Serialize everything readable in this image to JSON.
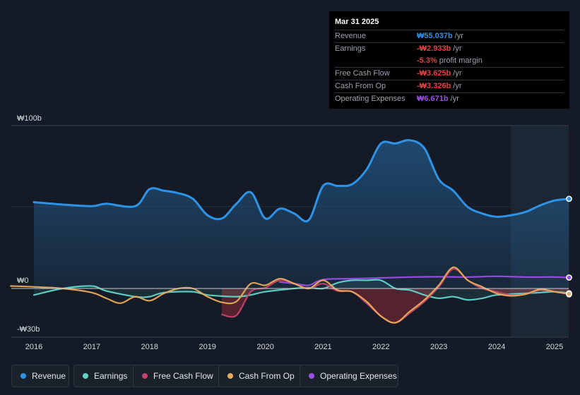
{
  "colors": {
    "revenue": "#2e93e6",
    "earnings": "#5fd4c9",
    "free_cash_flow": "#c2426d",
    "cash_from_op": "#e9aa5a",
    "operating_expenses": "#9b4fe6",
    "negative": "#e04141"
  },
  "tooltip": {
    "date": "Mar 31 2025",
    "rows": [
      {
        "label": "Revenue",
        "value": "₩55.037b",
        "unit": "/yr"
      },
      {
        "label": "Earnings",
        "value": "-₩2.933b",
        "unit": "/yr"
      },
      {
        "label": "",
        "value": "-5.3%",
        "unit": "profit margin"
      },
      {
        "label": "Free Cash Flow",
        "value": "-₩3.625b",
        "unit": "/yr"
      },
      {
        "label": "Cash From Op",
        "value": "-₩3.326b",
        "unit": "/yr"
      },
      {
        "label": "Operating Expenses",
        "value": "₩6.671b",
        "unit": "/yr"
      }
    ]
  },
  "legend": [
    "Revenue",
    "Earnings",
    "Free Cash Flow",
    "Cash From Op",
    "Operating Expenses"
  ],
  "chart_data": {
    "type": "area",
    "currency_unit": "billion KRW",
    "ylim": [
      -30,
      100
    ],
    "y_tick_labels": [
      "₩100b",
      "₩0",
      "-₩30b"
    ],
    "x_tick_labels": [
      "2016",
      "2017",
      "2018",
      "2019",
      "2020",
      "2021",
      "2022",
      "2023",
      "2024",
      "2025"
    ],
    "x_range": [
      2015.6,
      2025.3
    ],
    "forecast_region_start": 2024.25,
    "series": [
      {
        "name": "Revenue",
        "points": [
          [
            2016.0,
            53
          ],
          [
            2016.5,
            51.5
          ],
          [
            2017.0,
            50.5
          ],
          [
            2017.25,
            52
          ],
          [
            2017.75,
            50.5
          ],
          [
            2018.0,
            61
          ],
          [
            2018.25,
            60
          ],
          [
            2018.5,
            58.5
          ],
          [
            2018.75,
            55
          ],
          [
            2019.0,
            45
          ],
          [
            2019.25,
            43
          ],
          [
            2019.5,
            52
          ],
          [
            2019.75,
            59
          ],
          [
            2020.0,
            43
          ],
          [
            2020.25,
            49
          ],
          [
            2020.5,
            46
          ],
          [
            2020.75,
            42
          ],
          [
            2021.0,
            63
          ],
          [
            2021.25,
            63
          ],
          [
            2021.5,
            64
          ],
          [
            2021.75,
            73
          ],
          [
            2022.0,
            89
          ],
          [
            2022.25,
            89
          ],
          [
            2022.5,
            91
          ],
          [
            2022.75,
            86
          ],
          [
            2023.0,
            67
          ],
          [
            2023.25,
            60
          ],
          [
            2023.5,
            50
          ],
          [
            2023.75,
            46
          ],
          [
            2024.0,
            44
          ],
          [
            2024.25,
            45
          ],
          [
            2024.5,
            47
          ],
          [
            2024.75,
            51
          ],
          [
            2025.0,
            54
          ],
          [
            2025.25,
            55
          ]
        ]
      },
      {
        "name": "Earnings",
        "points": [
          [
            2016.0,
            -4
          ],
          [
            2016.5,
            0
          ],
          [
            2017.0,
            1.5
          ],
          [
            2017.25,
            -1.5
          ],
          [
            2017.75,
            -5
          ],
          [
            2018.0,
            -5
          ],
          [
            2018.25,
            -2.5
          ],
          [
            2018.75,
            -2
          ],
          [
            2019.0,
            -4
          ],
          [
            2019.5,
            -5
          ],
          [
            2019.75,
            -4
          ],
          [
            2020.0,
            -2
          ],
          [
            2020.5,
            0
          ],
          [
            2020.75,
            0.5
          ],
          [
            2021.0,
            0
          ],
          [
            2021.25,
            3.5
          ],
          [
            2021.5,
            5
          ],
          [
            2021.75,
            5
          ],
          [
            2022.0,
            5
          ],
          [
            2022.25,
            0
          ],
          [
            2022.5,
            -1
          ],
          [
            2022.75,
            -4
          ],
          [
            2023.0,
            -6
          ],
          [
            2023.25,
            -5
          ],
          [
            2023.5,
            -7
          ],
          [
            2023.75,
            -6
          ],
          [
            2024.0,
            -4
          ],
          [
            2024.5,
            -3
          ],
          [
            2024.75,
            -2.5
          ],
          [
            2025.0,
            -2
          ],
          [
            2025.25,
            -2.9
          ]
        ]
      },
      {
        "name": "Free Cash Flow",
        "points": [
          [
            2019.25,
            -16
          ],
          [
            2019.5,
            -16.5
          ],
          [
            2019.75,
            -2
          ],
          [
            2020.0,
            0.5
          ],
          [
            2020.25,
            5
          ],
          [
            2020.5,
            3
          ],
          [
            2020.75,
            0
          ],
          [
            2021.0,
            3
          ],
          [
            2021.25,
            -1.5
          ],
          [
            2021.5,
            -2
          ],
          [
            2021.75,
            -9
          ],
          [
            2022.0,
            -17
          ],
          [
            2022.25,
            -21
          ],
          [
            2022.5,
            -15
          ],
          [
            2022.75,
            -8
          ],
          [
            2023.0,
            1
          ],
          [
            2023.25,
            12
          ],
          [
            2023.5,
            5
          ],
          [
            2023.75,
            0
          ],
          [
            2024.0,
            -2
          ],
          [
            2024.25,
            -4
          ],
          [
            2024.5,
            -3.5
          ],
          [
            2024.75,
            -1
          ],
          [
            2025.0,
            -2
          ],
          [
            2025.25,
            -3.6
          ]
        ]
      },
      {
        "name": "Cash From Op",
        "points": [
          [
            2015.6,
            1.5
          ],
          [
            2016.0,
            1
          ],
          [
            2016.5,
            0
          ],
          [
            2017.0,
            -2.5
          ],
          [
            2017.25,
            -6
          ],
          [
            2017.5,
            -9
          ],
          [
            2017.75,
            -5
          ],
          [
            2018.0,
            -7.5
          ],
          [
            2018.25,
            -3
          ],
          [
            2018.5,
            0
          ],
          [
            2018.75,
            0
          ],
          [
            2019.0,
            -5
          ],
          [
            2019.25,
            -8.5
          ],
          [
            2019.5,
            -8
          ],
          [
            2019.75,
            3
          ],
          [
            2020.0,
            2
          ],
          [
            2020.25,
            6
          ],
          [
            2020.5,
            3
          ],
          [
            2020.75,
            0
          ],
          [
            2021.0,
            5
          ],
          [
            2021.25,
            -1
          ],
          [
            2021.5,
            -2
          ],
          [
            2021.75,
            -8
          ],
          [
            2022.0,
            -17
          ],
          [
            2022.25,
            -21
          ],
          [
            2022.5,
            -14
          ],
          [
            2022.75,
            -7
          ],
          [
            2023.0,
            2
          ],
          [
            2023.25,
            13
          ],
          [
            2023.5,
            5
          ],
          [
            2023.75,
            1
          ],
          [
            2024.0,
            -3
          ],
          [
            2024.25,
            -4.5
          ],
          [
            2024.5,
            -3.5
          ],
          [
            2024.75,
            -0.5
          ],
          [
            2025.0,
            -2
          ],
          [
            2025.25,
            -3.3
          ]
        ]
      },
      {
        "name": "Operating Expenses",
        "points": [
          [
            2020.25,
            4
          ],
          [
            2020.5,
            3
          ],
          [
            2020.75,
            2
          ],
          [
            2021.0,
            5.5
          ],
          [
            2021.5,
            6
          ],
          [
            2022.0,
            6.5
          ],
          [
            2022.5,
            7
          ],
          [
            2023.0,
            7.2
          ],
          [
            2023.5,
            7
          ],
          [
            2024.0,
            7.5
          ],
          [
            2024.5,
            7
          ],
          [
            2025.0,
            7
          ],
          [
            2025.25,
            6.7
          ]
        ]
      }
    ]
  }
}
